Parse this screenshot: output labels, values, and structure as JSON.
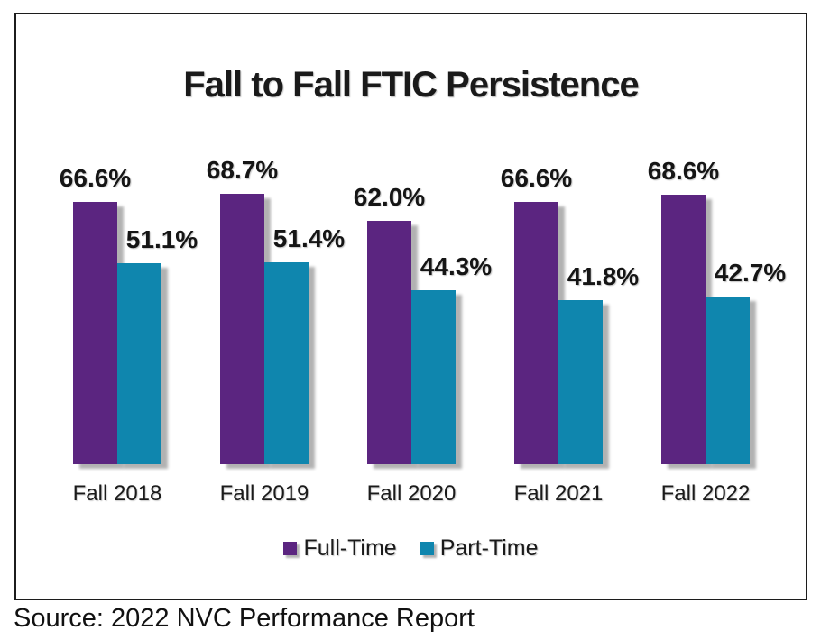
{
  "chart_data": {
    "type": "bar",
    "title": "Fall to Fall FTIC Persistence",
    "categories": [
      "Fall 2018",
      "Fall 2019",
      "Fall 2020",
      "Fall 2021",
      "Fall 2022"
    ],
    "series": [
      {
        "name": "Full-Time",
        "color": "#5b2580",
        "values": [
          66.6,
          68.7,
          62.0,
          66.6,
          68.6
        ]
      },
      {
        "name": "Part-Time",
        "color": "#0f86ae",
        "values": [
          51.1,
          51.4,
          44.3,
          41.8,
          42.7
        ]
      }
    ],
    "value_labels": [
      [
        "66.6%",
        "68.7%",
        "62.0%",
        "66.6%",
        "68.6%"
      ],
      [
        "51.1%",
        "51.4%",
        "44.3%",
        "41.8%",
        "42.7%"
      ]
    ],
    "ylim": [
      0,
      80
    ],
    "grid": false,
    "axes_visible": false,
    "legend_position": "bottom"
  },
  "page": {
    "source_note": "Source: 2022 NVC Performance Report"
  },
  "colors": {
    "full_time": "#5b2580",
    "part_time": "#0f86ae",
    "text": "#1a1a1a",
    "frame_border": "#1c1c1c",
    "background": "#ffffff"
  }
}
